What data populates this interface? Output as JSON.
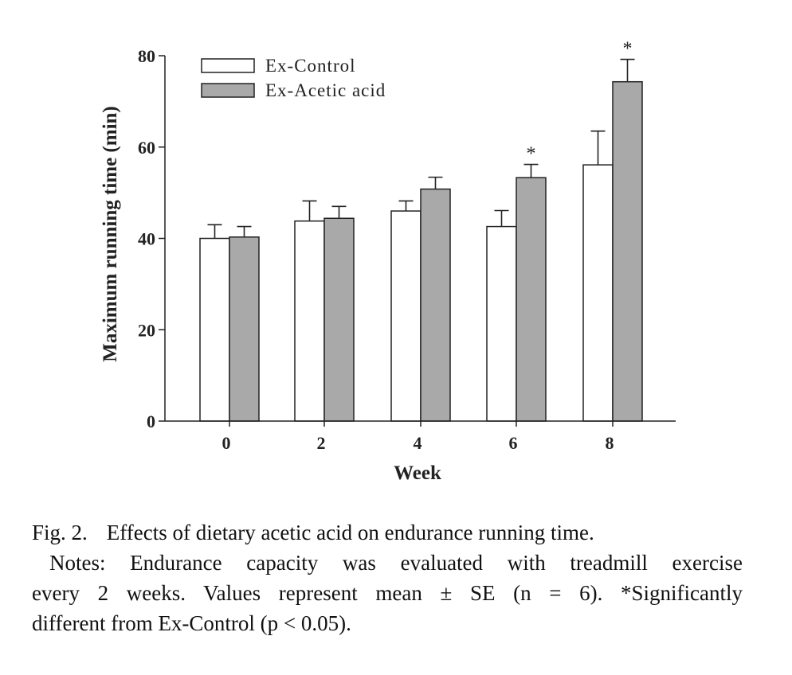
{
  "chart_data": {
    "type": "bar",
    "title": "",
    "xlabel": "Week",
    "ylabel": "Maximum running time (min)",
    "categories": [
      "0",
      "2",
      "4",
      "6",
      "8"
    ],
    "yticks": [
      "0",
      "20",
      "40",
      "60",
      "80"
    ],
    "ylim": [
      0,
      80
    ],
    "series": [
      {
        "name": "Ex-Control",
        "color": "#ffffff",
        "values": [
          40.0,
          43.8,
          46.0,
          42.6,
          56.1
        ],
        "errors": [
          3.0,
          4.4,
          2.2,
          3.5,
          7.4
        ]
      },
      {
        "name": "Ex-Acetic acid",
        "color": "#a9a9a9",
        "values": [
          40.3,
          44.4,
          50.8,
          53.3,
          74.3
        ],
        "errors": [
          2.3,
          2.6,
          2.6,
          2.9,
          4.9
        ]
      }
    ],
    "significance": [
      {
        "category": "6",
        "series": "Ex-Acetic acid",
        "label": "*"
      },
      {
        "category": "8",
        "series": "Ex-Acetic acid",
        "label": "*"
      }
    ],
    "legend": "top-left",
    "grid": false
  },
  "caption": {
    "title_label": "Fig. 2.",
    "title_text": "Effects of dietary acetic acid on endurance running time.",
    "notes_line1": "Notes: Endurance capacity was evaluated with treadmill exercise",
    "notes_line2": "every  2 weeks.  Values  represent  mean ± SE  (n = 6).  *Significantly",
    "notes_line3": "different from Ex-Control (p < 0.05)."
  }
}
